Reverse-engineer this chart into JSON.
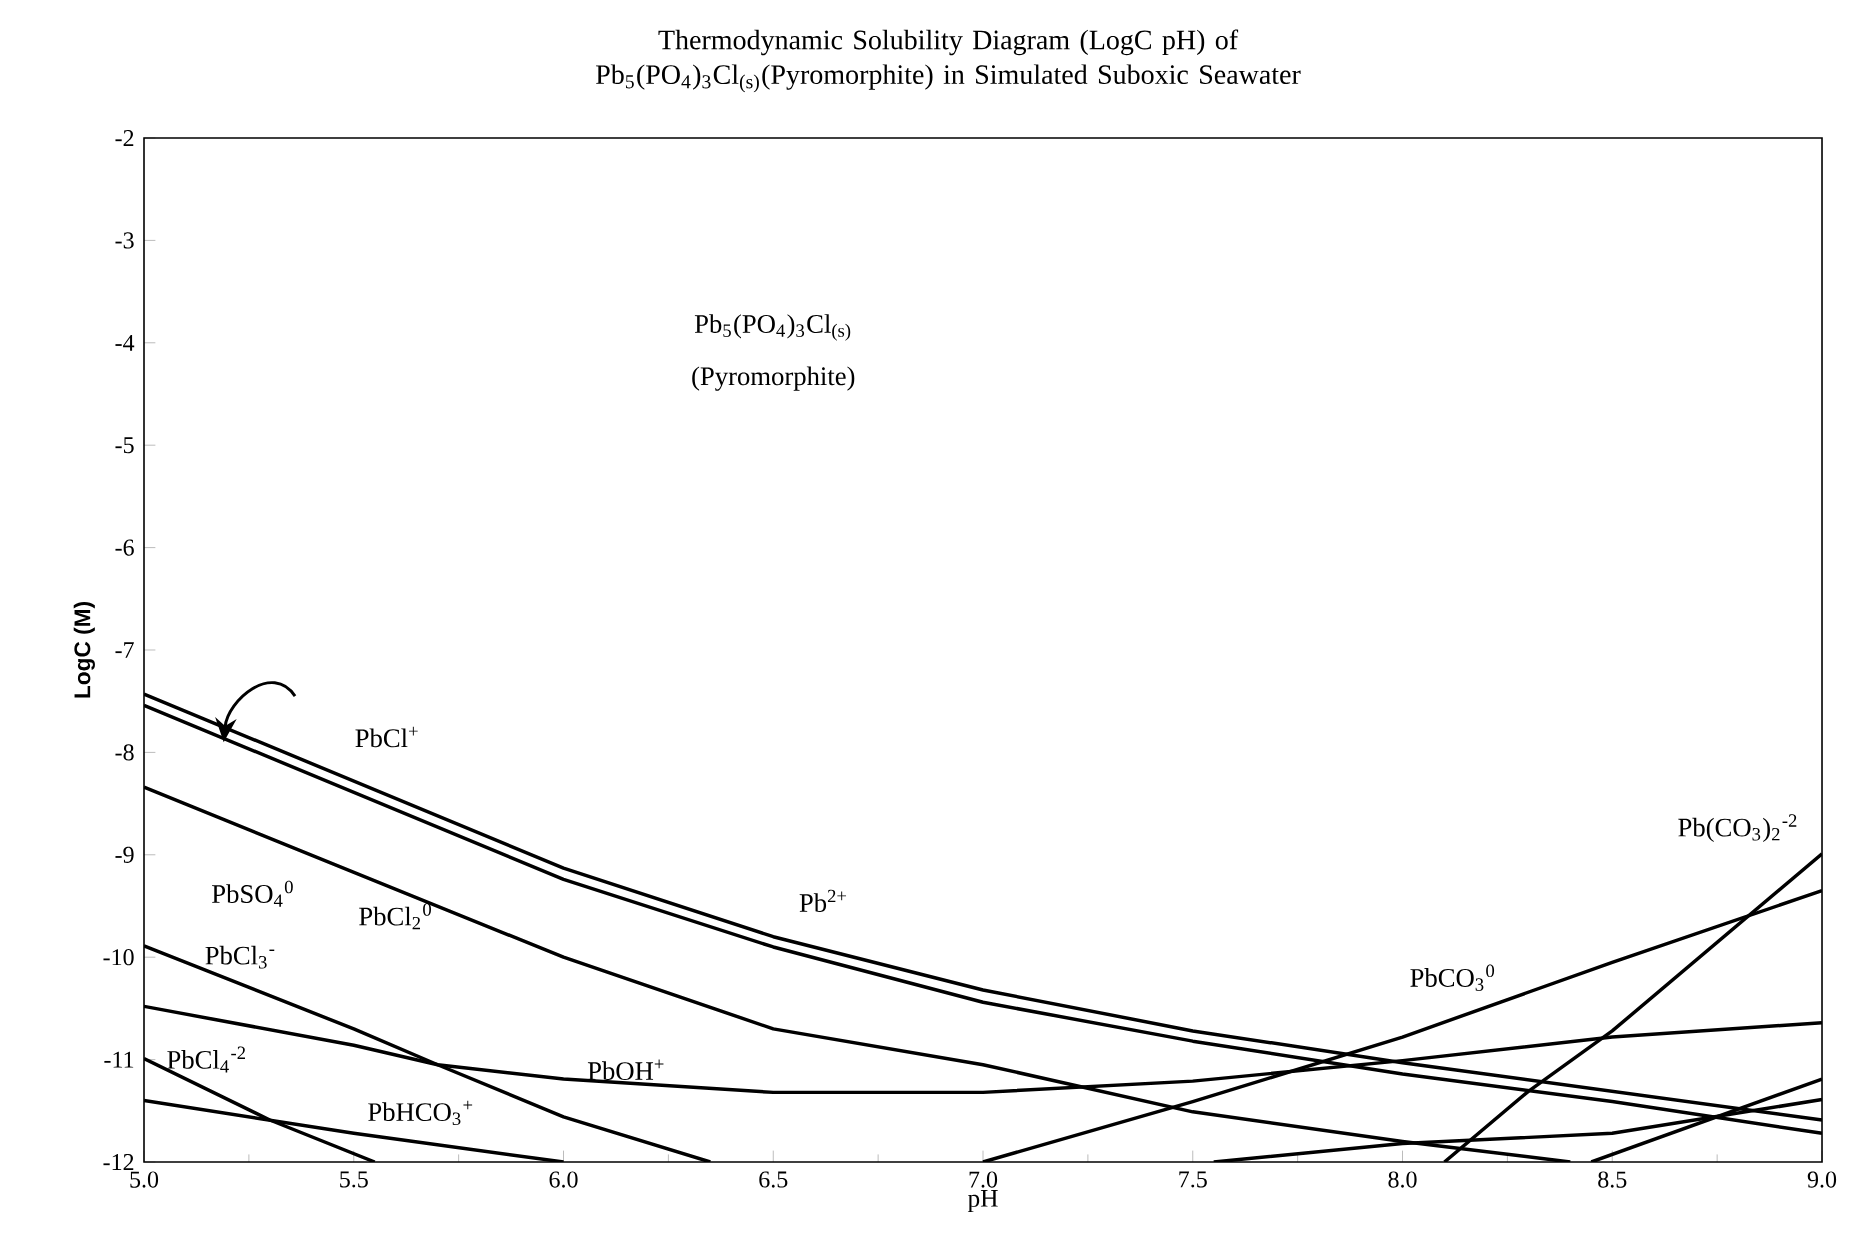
{
  "chart_data": {
    "type": "line",
    "title": "Thermodynamic Solubility Diagram (LogC pH) of Pb$_{5}$(PO$_{4}$)$_{3}$Cl$_{(s)}$(Pyromorphite) in Simulated Suboxic Seawater",
    "xlabel": "pH",
    "ylabel": "LogC (M)",
    "xlim": [
      5,
      9
    ],
    "ylim": [
      -12,
      -2
    ],
    "xticks": [
      {
        "value": 5,
        "label": "5.0"
      },
      {
        "value": 5.5,
        "label": "5.5"
      },
      {
        "value": 6,
        "label": "6.0"
      },
      {
        "value": 6.5,
        "label": "6.5"
      },
      {
        "value": 7,
        "label": "7.0"
      },
      {
        "value": 7.5,
        "label": "7.5"
      },
      {
        "value": 8,
        "label": "8.0"
      },
      {
        "value": 8.5,
        "label": "8.5"
      },
      {
        "value": 9,
        "label": "9.0"
      }
    ],
    "yticks": [
      -12,
      -11,
      -10,
      -9,
      -8,
      -7,
      -6,
      -5,
      -4,
      -3,
      -2
    ],
    "grid": false,
    "marker": "none",
    "line_style": "solid",
    "series": [
      {
        "color": "#000000",
        "x": [
          5.0,
          6.0,
          6.5,
          7.0,
          7.5,
          8.0,
          8.5,
          9.0
        ],
        "values": [
          -7.43,
          -9.13,
          -9.8,
          -10.32,
          -10.72,
          -11.03,
          -11.31,
          -11.59
        ]
      },
      {
        "color": "#000000",
        "x": [
          5.0,
          6.0,
          6.5,
          7.0,
          7.5,
          8.0,
          8.5,
          9.0
        ],
        "values": [
          -7.54,
          -9.24,
          -9.9,
          -10.44,
          -10.82,
          -11.14,
          -11.41,
          -11.72
        ]
      },
      {
        "color": "#000000",
        "x": [
          5.0,
          6.0,
          6.5,
          7.0,
          7.5,
          8.0,
          8.4
        ],
        "values": [
          -8.34,
          -10.0,
          -10.7,
          -11.05,
          -11.51,
          -11.8,
          -12.0
        ]
      },
      {
        "color": "#000000",
        "x": [
          5.0,
          5.5,
          5.7,
          6.0,
          6.35
        ],
        "values": [
          -9.89,
          -10.7,
          -11.05,
          -11.56,
          -12.0
        ]
      },
      {
        "color": "#000000",
        "x": [
          5.0,
          5.5,
          5.7,
          6.0,
          6.5,
          7.0,
          7.5,
          8.0,
          8.5,
          9.0
        ],
        "values": [
          -10.48,
          -10.86,
          -11.05,
          -11.19,
          -11.32,
          -11.32,
          -11.21,
          -11.01,
          -10.78,
          -10.64
        ]
      },
      {
        "color": "#000000",
        "x": [
          5.0,
          5.3,
          5.55
        ],
        "values": [
          -10.99,
          -11.59,
          -12.0
        ]
      },
      {
        "color": "#000000",
        "x": [
          5.0,
          5.5,
          6.0
        ],
        "values": [
          -11.4,
          -11.72,
          -12.0
        ]
      },
      {
        "color": "#000000",
        "x": [
          7.0,
          7.5,
          8.0,
          8.5,
          9.0
        ],
        "values": [
          -12.0,
          -11.41,
          -10.78,
          -10.05,
          -9.35
        ]
      },
      {
        "color": "#000000",
        "x": [
          8.1,
          8.3,
          8.5,
          9.0
        ],
        "values": [
          -12.0,
          -11.31,
          -10.72,
          -8.99
        ]
      },
      {
        "color": "#000000",
        "x": [
          7.55,
          8.0,
          8.5,
          9.0
        ],
        "values": [
          -12.0,
          -11.82,
          -11.72,
          -11.39
        ]
      },
      {
        "color": "#000000",
        "x": [
          8.45,
          9.0
        ],
        "values": [
          -12.0,
          -11.19
        ]
      }
    ],
    "annotations": [
      "Pb$_{5}$(PO$_{4}$)$_{3}$Cl$_{(s)}$",
      "(Pyromorphite)",
      "PbCl$^{+}$",
      "Pb$^{2+}$",
      "PbSO$_{4}$$^{0}$",
      "PbCl$_{2}$$^{0}$",
      "PbCl$_{3}$$^{-}$",
      "PbCl$_{4}$$^{-2}$",
      "PbOH$^{+}$",
      "PbHCO$_{3}$$^{+}$",
      "PbCO$_{3}$$^{0}$",
      "Pb(CO$_{3}$)$_{2}$$^{-2}$"
    ]
  }
}
